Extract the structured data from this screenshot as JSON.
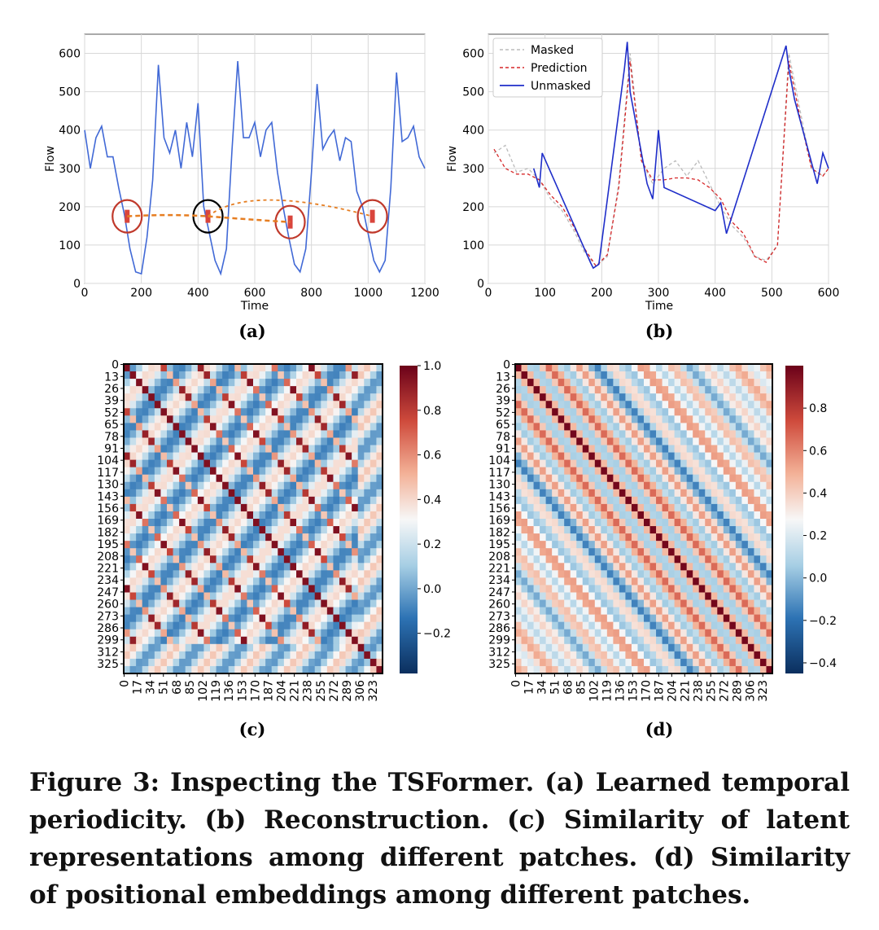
{
  "figure": {
    "caption": "Figure 3: Inspecting the TSFormer. (a) Learned temporal periodicity. (b) Reconstruction. (c) Similarity of latent representations among different patches. (d) Similarity of positional embeddings among different patches."
  },
  "panels": {
    "a": {
      "label": "(a)"
    },
    "b": {
      "label": "(b)"
    },
    "c": {
      "label": "(c)"
    },
    "d": {
      "label": "(d)"
    }
  },
  "chart_data": [
    {
      "panel": "a",
      "type": "line",
      "xlabel": "Time",
      "ylabel": "Flow",
      "xlim": [
        0,
        1200
      ],
      "ylim": [
        0,
        650
      ],
      "xticks": [
        0,
        200,
        400,
        600,
        800,
        1000,
        1200
      ],
      "yticks": [
        0,
        100,
        200,
        300,
        400,
        500,
        600
      ],
      "grid": true,
      "series": [
        {
          "color": "#4169d6",
          "x": [
            0,
            20,
            40,
            60,
            80,
            100,
            120,
            140,
            160,
            180,
            200,
            220,
            240,
            260,
            280,
            300,
            320,
            340,
            360,
            380,
            400,
            420,
            440,
            460,
            480,
            500,
            520,
            540,
            560,
            580,
            600,
            620,
            640,
            660,
            680,
            700,
            720,
            740,
            760,
            780,
            800,
            820,
            840,
            860,
            880,
            900,
            920,
            940,
            960,
            980,
            1000,
            1020,
            1040,
            1060,
            1080,
            1100,
            1120,
            1140,
            1160,
            1180,
            1200
          ],
          "y": [
            400,
            300,
            380,
            410,
            330,
            330,
            250,
            180,
            90,
            30,
            25,
            120,
            270,
            570,
            380,
            340,
            400,
            300,
            420,
            330,
            470,
            200,
            130,
            60,
            25,
            90,
            350,
            580,
            380,
            380,
            420,
            330,
            400,
            420,
            290,
            200,
            120,
            50,
            30,
            90,
            290,
            520,
            350,
            380,
            400,
            320,
            380,
            370,
            240,
            200,
            130,
            60,
            30,
            60,
            250,
            550,
            370,
            380,
            410,
            330,
            300
          ]
        }
      ],
      "annotations": [
        {
          "shape": "circle",
          "color": "#c0392b",
          "center": [
            150,
            175
          ]
        },
        {
          "shape": "circle",
          "color": "#000000",
          "center": [
            435,
            175
          ]
        },
        {
          "shape": "circle",
          "color": "#c0392b",
          "center": [
            725,
            160
          ]
        },
        {
          "shape": "circle",
          "color": "#c0392b",
          "center": [
            1015,
            175
          ]
        },
        {
          "shape": "dashed-arc",
          "color": "#e67e22",
          "from": [
            150,
            175
          ],
          "to": [
            1015,
            175
          ]
        }
      ]
    },
    {
      "panel": "b",
      "type": "line",
      "xlabel": "Time",
      "ylabel": "Flow",
      "xlim": [
        0,
        600
      ],
      "ylim": [
        0,
        650
      ],
      "xticks": [
        0,
        100,
        200,
        300,
        400,
        500,
        600
      ],
      "yticks": [
        0,
        100,
        200,
        300,
        400,
        500,
        600
      ],
      "grid": true,
      "legend": "top-left",
      "series": [
        {
          "name": "Masked",
          "color": "#bbbbbb",
          "style": "dashed",
          "x": [
            10,
            30,
            50,
            70,
            90,
            110,
            130,
            150,
            170,
            190,
            210,
            230,
            250,
            270,
            290,
            310,
            330,
            350,
            370,
            390,
            410,
            430,
            450,
            470,
            490,
            510,
            530,
            550,
            570,
            590,
            600
          ],
          "y": [
            340,
            360,
            290,
            300,
            270,
            220,
            190,
            140,
            80,
            45,
            70,
            260,
            600,
            320,
            260,
            300,
            320,
            280,
            320,
            260,
            200,
            150,
            120,
            70,
            60,
            100,
            600,
            450,
            300,
            280,
            300
          ]
        },
        {
          "name": "Prediction",
          "color": "#d62728",
          "style": "dashed",
          "x": [
            10,
            30,
            50,
            70,
            90,
            110,
            130,
            150,
            170,
            190,
            210,
            230,
            250,
            270,
            290,
            310,
            330,
            350,
            370,
            390,
            410,
            430,
            450,
            470,
            490,
            510,
            530,
            550,
            570,
            590,
            600
          ],
          "y": [
            350,
            300,
            285,
            285,
            270,
            230,
            200,
            150,
            90,
            45,
            75,
            250,
            580,
            320,
            270,
            270,
            275,
            275,
            270,
            250,
            220,
            160,
            130,
            70,
            55,
            100,
            580,
            430,
            300,
            280,
            300
          ]
        },
        {
          "name": "Unmasked",
          "color": "#1f2ec9",
          "style": "solid",
          "x": [
            80,
            90,
            95,
            180,
            185,
            195,
            240,
            245,
            250,
            280,
            290,
            300,
            310,
            400,
            410,
            420,
            525,
            530,
            540,
            580,
            590,
            600
          ],
          "y": [
            300,
            250,
            340,
            55,
            40,
            50,
            560,
            630,
            500,
            260,
            220,
            400,
            250,
            190,
            210,
            130,
            620,
            560,
            480,
            260,
            340,
            300
          ]
        }
      ]
    },
    {
      "panel": "c",
      "type": "heatmap",
      "rows": 336,
      "cols": 336,
      "yticklabels": [
        "0",
        "13",
        "26",
        "39",
        "52",
        "65",
        "78",
        "91",
        "104",
        "117",
        "130",
        "143",
        "156",
        "169",
        "182",
        "195",
        "208",
        "221",
        "234",
        "247",
        "260",
        "273",
        "286",
        "299",
        "312",
        "325"
      ],
      "xticklabels": [
        "0",
        "17",
        "34",
        "51",
        "68",
        "85",
        "102",
        "119",
        "136",
        "153",
        "170",
        "187",
        "204",
        "221",
        "238",
        "255",
        "272",
        "289",
        "306",
        "323"
      ],
      "colormap": "RdBu_r",
      "colorbar": {
        "min": -0.38,
        "max": 1.0,
        "ticks": [
          "1.0",
          "0.8",
          "0.6",
          "0.4",
          "0.2",
          "0.0",
          "−0.2"
        ]
      }
    },
    {
      "panel": "d",
      "type": "heatmap",
      "rows": 336,
      "cols": 336,
      "yticklabels": [
        "0",
        "13",
        "26",
        "39",
        "52",
        "65",
        "78",
        "91",
        "104",
        "117",
        "130",
        "143",
        "156",
        "169",
        "182",
        "195",
        "208",
        "221",
        "234",
        "247",
        "260",
        "273",
        "286",
        "299",
        "312",
        "325"
      ],
      "xticklabels": [
        "0",
        "17",
        "34",
        "51",
        "68",
        "85",
        "102",
        "119",
        "136",
        "153",
        "170",
        "187",
        "204",
        "221",
        "238",
        "255",
        "272",
        "289",
        "306",
        "323"
      ],
      "colormap": "RdBu_r",
      "colorbar": {
        "min": -0.45,
        "max": 1.0,
        "ticks": [
          "0.8",
          "0.6",
          "0.4",
          "0.2",
          "0.0",
          "−0.2",
          "−0.4"
        ]
      }
    }
  ]
}
